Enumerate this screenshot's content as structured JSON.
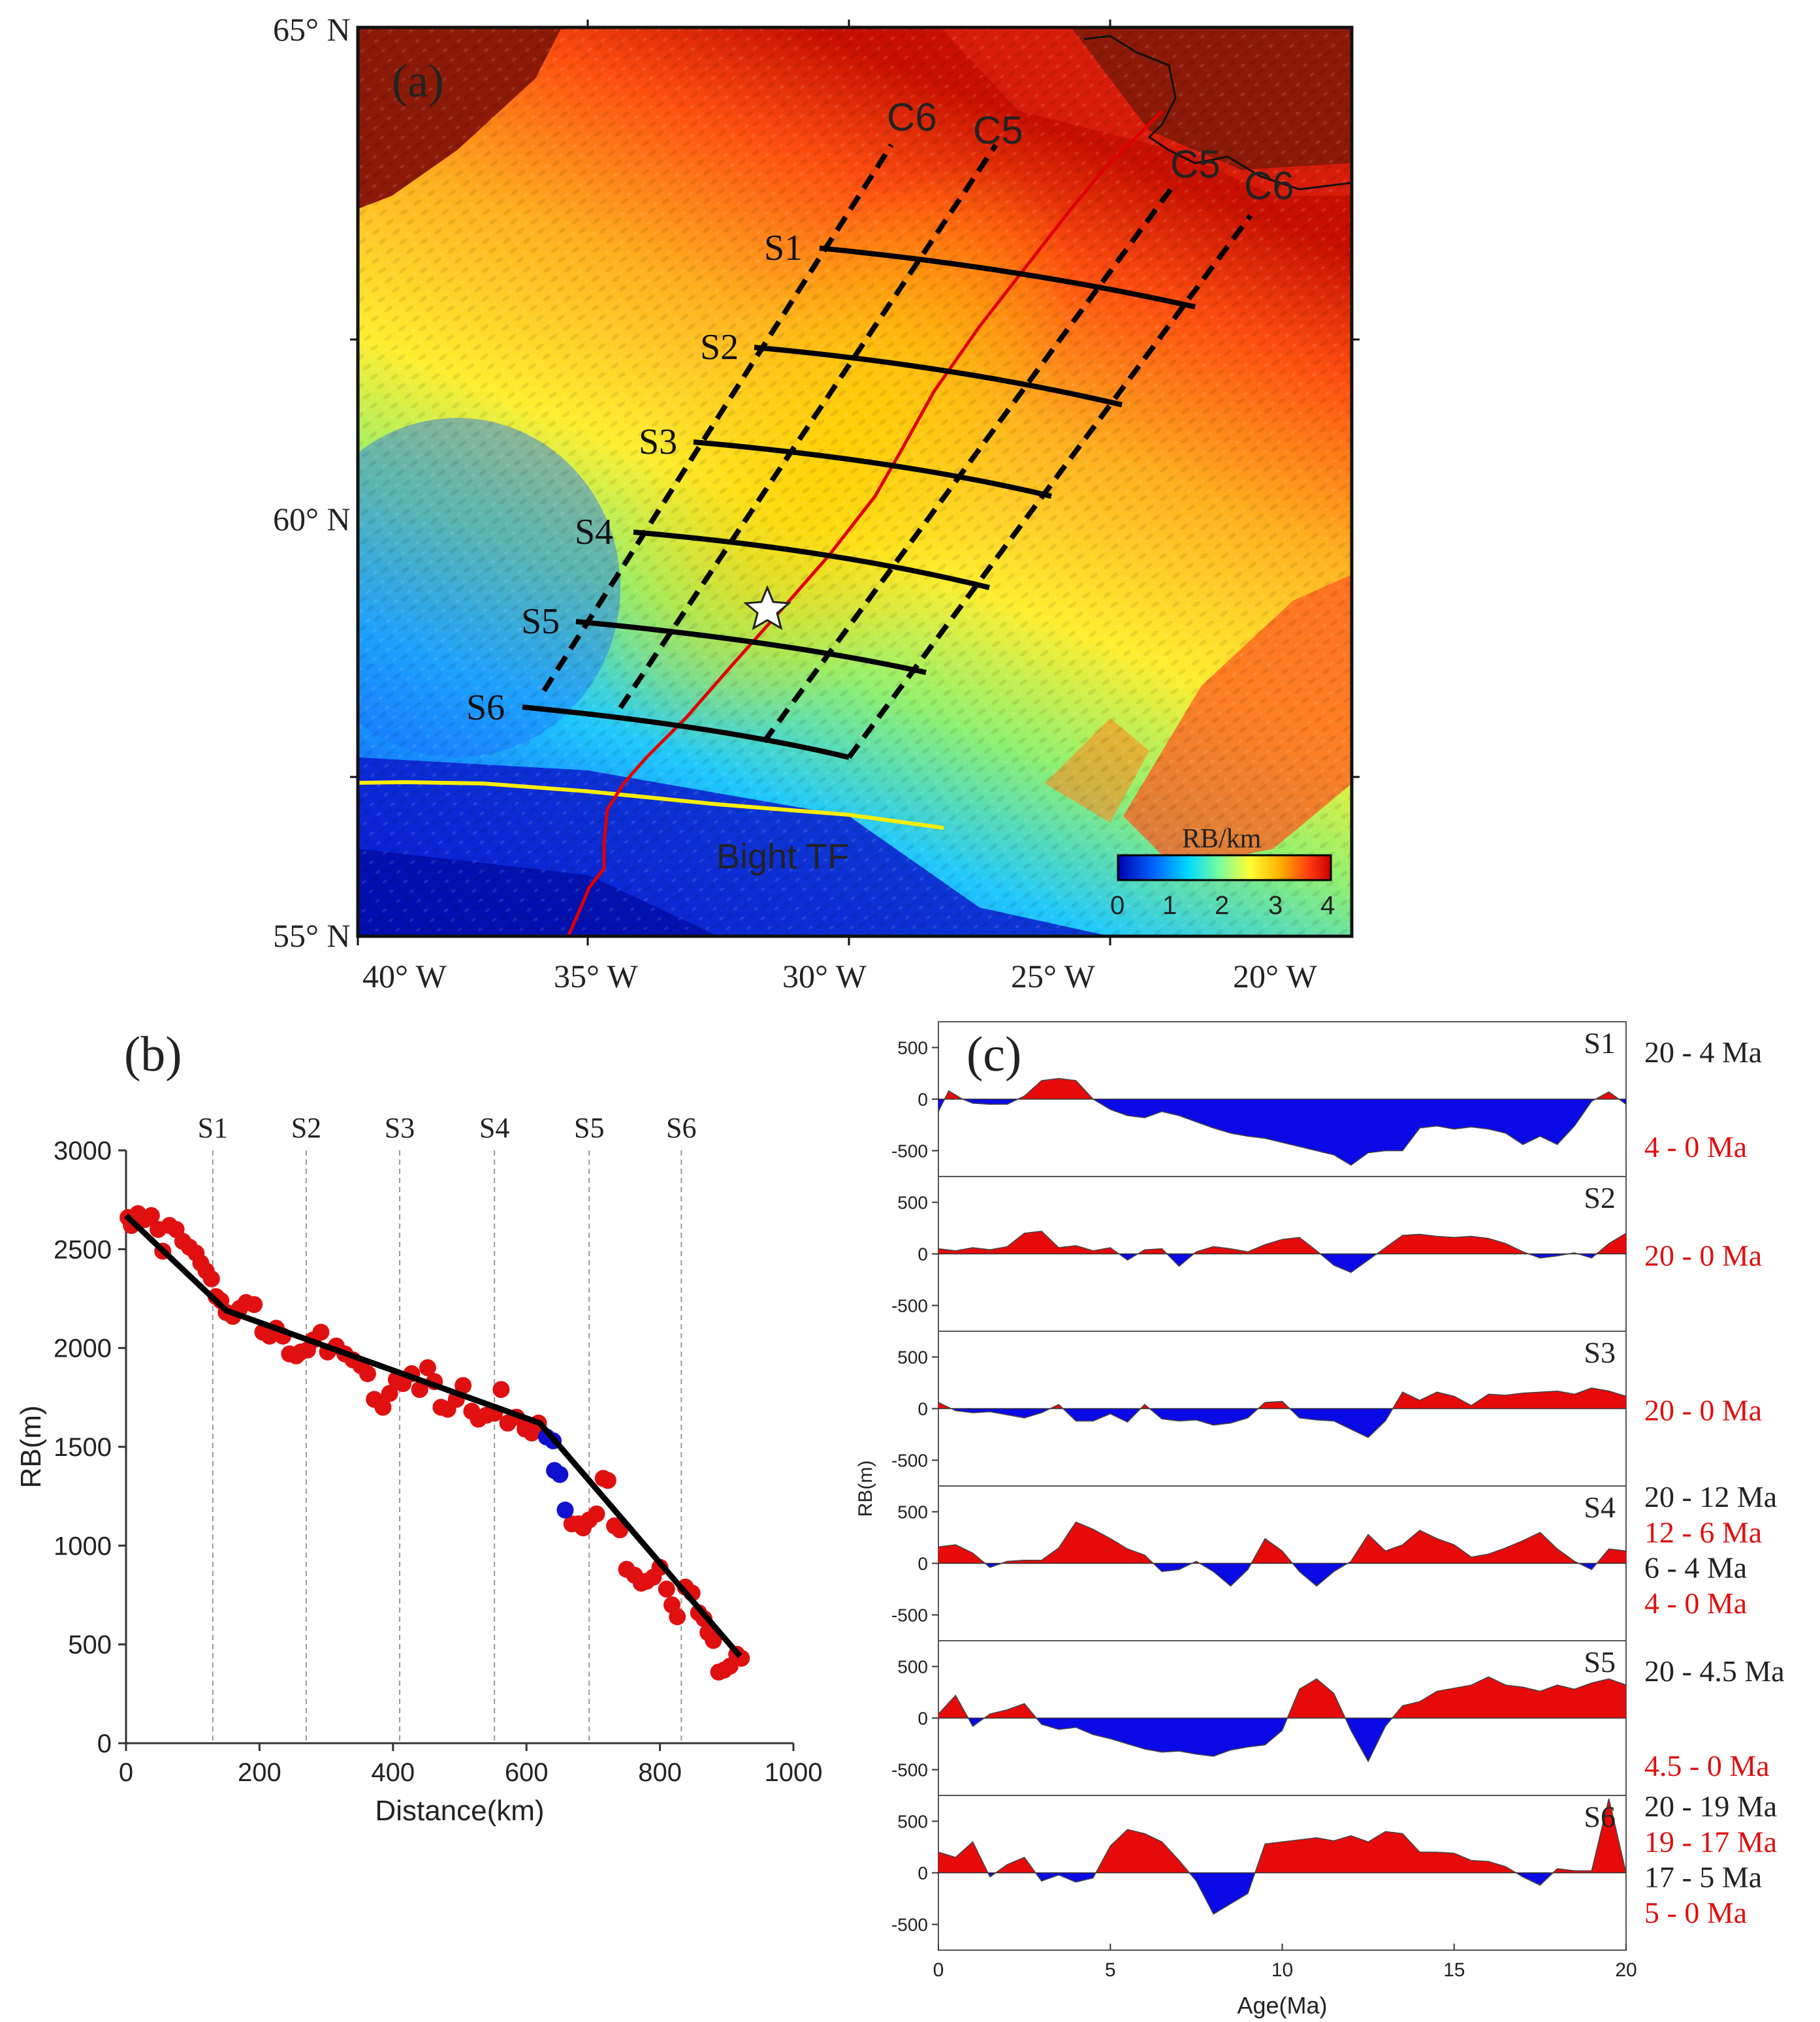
{
  "panel_a": {
    "label": "(a)",
    "lat_labels": [
      "65° N",
      "60° N",
      "55° N"
    ],
    "lon_labels": [
      "40° W",
      "35° W",
      "30° W",
      "25° W",
      "20° W"
    ],
    "isochron_labels": {
      "c6_west": "C6",
      "c5_west": "C5",
      "c5_east": "C5",
      "c6_east": "C6"
    },
    "profile_labels": [
      "S1",
      "S2",
      "S3",
      "S4",
      "S5",
      "S6"
    ],
    "tf_label": "Bight TF",
    "colorbar": {
      "title": "RB/km",
      "ticks": [
        "0",
        "1",
        "2",
        "3",
        "4"
      ],
      "colors": [
        "#0000b0",
        "#0066ff",
        "#00d8ff",
        "#7cff9c",
        "#ffff33",
        "#ffb000",
        "#ff3a10",
        "#c80000"
      ]
    }
  },
  "chart_data": [
    {
      "panel": "(b)",
      "type": "scatter",
      "xlabel": "Distance(km)",
      "ylabel": "RB(m)",
      "xlim": [
        0,
        1000
      ],
      "ylim": [
        0,
        3000
      ],
      "xticks": [
        "0",
        "200",
        "400",
        "600",
        "800",
        "1000"
      ],
      "yticks": [
        "0",
        "500",
        "1000",
        "1500",
        "2000",
        "2500",
        "3000"
      ],
      "profile_lines": [
        {
          "name": "S1",
          "x": 130
        },
        {
          "name": "S2",
          "x": 270
        },
        {
          "name": "S3",
          "x": 410
        },
        {
          "name": "S4",
          "x": 552
        },
        {
          "name": "S5",
          "x": 694
        },
        {
          "name": "S6",
          "x": 832
        }
      ],
      "series": [
        {
          "name": "red",
          "color": "#e01010",
          "points": [
            [
              3,
              2660
            ],
            [
              8,
              2620
            ],
            [
              18,
              2680
            ],
            [
              28,
              2650
            ],
            [
              38,
              2670
            ],
            [
              48,
              2600
            ],
            [
              55,
              2490
            ],
            [
              65,
              2620
            ],
            [
              75,
              2600
            ],
            [
              85,
              2540
            ],
            [
              95,
              2510
            ],
            [
              105,
              2480
            ],
            [
              112,
              2430
            ],
            [
              120,
              2390
            ],
            [
              128,
              2350
            ],
            [
              135,
              2260
            ],
            [
              142,
              2240
            ],
            [
              150,
              2180
            ],
            [
              160,
              2160
            ],
            [
              170,
              2200
            ],
            [
              180,
              2230
            ],
            [
              192,
              2220
            ],
            [
              205,
              2080
            ],
            [
              215,
              2060
            ],
            [
              225,
              2100
            ],
            [
              235,
              2060
            ],
            [
              245,
              1970
            ],
            [
              255,
              1960
            ],
            [
              262,
              1980
            ],
            [
              272,
              1990
            ],
            [
              280,
              2040
            ],
            [
              292,
              2080
            ],
            [
              302,
              1980
            ],
            [
              315,
              2010
            ],
            [
              328,
              1970
            ],
            [
              340,
              1940
            ],
            [
              352,
              1910
            ],
            [
              362,
              1870
            ],
            [
              372,
              1740
            ],
            [
              385,
              1700
            ],
            [
              395,
              1770
            ],
            [
              405,
              1840
            ],
            [
              415,
              1820
            ],
            [
              428,
              1870
            ],
            [
              440,
              1790
            ],
            [
              452,
              1900
            ],
            [
              462,
              1830
            ],
            [
              472,
              1700
            ],
            [
              482,
              1690
            ],
            [
              495,
              1740
            ],
            [
              505,
              1810
            ],
            [
              518,
              1680
            ],
            [
              528,
              1640
            ],
            [
              540,
              1660
            ],
            [
              552,
              1670
            ],
            [
              562,
              1790
            ],
            [
              572,
              1620
            ],
            [
              585,
              1650
            ],
            [
              598,
              1590
            ],
            [
              608,
              1570
            ],
            [
              618,
              1620
            ],
            [
              668,
              1110
            ],
            [
              678,
              1110
            ],
            [
              685,
              1090
            ],
            [
              694,
              1130
            ],
            [
              705,
              1160
            ],
            [
              715,
              1340
            ],
            [
              722,
              1330
            ],
            [
              732,
              1100
            ],
            [
              740,
              1080
            ],
            [
              750,
              880
            ],
            [
              762,
              850
            ],
            [
              772,
              810
            ],
            [
              780,
              820
            ],
            [
              790,
              840
            ],
            [
              800,
              890
            ],
            [
              810,
              780
            ],
            [
              818,
              700
            ],
            [
              826,
              640
            ],
            [
              838,
              790
            ],
            [
              848,
              760
            ],
            [
              858,
              660
            ],
            [
              866,
              630
            ],
            [
              872,
              560
            ],
            [
              880,
              520
            ],
            [
              888,
              360
            ],
            [
              896,
              370
            ],
            [
              905,
              390
            ],
            [
              915,
              450
            ],
            [
              922,
              430
            ]
          ]
        },
        {
          "name": "blue",
          "color": "#1010d0",
          "points": [
            [
              630,
              1550
            ],
            [
              640,
              1530
            ],
            [
              642,
              1380
            ],
            [
              650,
              1360
            ],
            [
              658,
              1180
            ]
          ]
        }
      ],
      "fit_line": {
        "color": "#000000",
        "x": [
          0,
          150,
          620,
          920
        ],
        "y": [
          2670,
          2190,
          1620,
          440
        ]
      }
    },
    {
      "panel": "(c)",
      "type": "area",
      "xlabel": "Age(Ma)",
      "ylabel": "RB(m)",
      "xlim": [
        0,
        20
      ],
      "ylim": [
        -750,
        750
      ],
      "xticks": [
        "0",
        "5",
        "10",
        "15",
        "20"
      ],
      "yticks": [
        "500",
        "0",
        "-500"
      ],
      "positive_color": "#e60a0a",
      "negative_color": "#0a0ae6",
      "series": [
        {
          "name": "S1",
          "annotations": [
            {
              "text": "20 - 4 Ma",
              "color": "#222222"
            },
            {
              "text": "4 - 0 Ma",
              "color": "#e01010"
            }
          ],
          "x": [
            0,
            0.3,
            0.7,
            1,
            1.5,
            2,
            2.5,
            3,
            3.5,
            4,
            4.5,
            5,
            5.5,
            6,
            6.5,
            7,
            7.5,
            8,
            8.5,
            9,
            9.5,
            10,
            10.5,
            11,
            11.5,
            12,
            12.5,
            13,
            13.5,
            14,
            14.5,
            15,
            15.5,
            16,
            16.5,
            17,
            17.5,
            18,
            18.5,
            19,
            19.5,
            20
          ],
          "values": [
            -120,
            80,
            0,
            -40,
            -50,
            -50,
            30,
            180,
            200,
            180,
            0,
            -100,
            -160,
            -180,
            -120,
            -160,
            -220,
            -280,
            -330,
            -360,
            -380,
            -420,
            -460,
            -500,
            -540,
            -640,
            -520,
            -500,
            -500,
            -280,
            -260,
            -290,
            -270,
            -290,
            -330,
            -440,
            -360,
            -440,
            -260,
            -20,
            70,
            -50
          ]
        },
        {
          "name": "S2",
          "annotations": [
            {
              "text": "20 - 0 Ma",
              "color": "#e01010"
            }
          ],
          "x": [
            0,
            0.5,
            1,
            1.5,
            2,
            2.5,
            3,
            3.5,
            4,
            4.5,
            5,
            5.5,
            6,
            6.5,
            7,
            7.5,
            8,
            8.5,
            9,
            9.5,
            10,
            10.5,
            11,
            11.5,
            12,
            12.5,
            13,
            13.5,
            14,
            14.5,
            15,
            15.5,
            16,
            16.5,
            17,
            17.5,
            18,
            18.5,
            19,
            19.5,
            20
          ],
          "values": [
            50,
            30,
            60,
            40,
            70,
            200,
            220,
            60,
            80,
            30,
            60,
            -60,
            40,
            50,
            -120,
            20,
            70,
            50,
            20,
            90,
            140,
            160,
            30,
            -110,
            -180,
            -60,
            60,
            180,
            190,
            170,
            160,
            170,
            150,
            100,
            20,
            -40,
            -20,
            10,
            -40,
            100,
            200
          ]
        },
        {
          "name": "S3",
          "annotations": [
            {
              "text": "20 - 0 Ma",
              "color": "#e01010"
            }
          ],
          "x": [
            0,
            0.5,
            1,
            1.5,
            2,
            2.5,
            3,
            3.5,
            4,
            4.5,
            5,
            5.5,
            6,
            6.5,
            7,
            7.5,
            8,
            8.5,
            9,
            9.5,
            10,
            10.5,
            11,
            11.5,
            12,
            12.5,
            13,
            13.5,
            14,
            14.5,
            15,
            15.5,
            16,
            16.5,
            17,
            17.5,
            18,
            18.5,
            19,
            19.5,
            20
          ],
          "values": [
            60,
            -20,
            -40,
            -30,
            -60,
            -90,
            -40,
            40,
            -120,
            -120,
            -50,
            -130,
            40,
            -100,
            -120,
            -110,
            -160,
            -140,
            -90,
            60,
            70,
            -90,
            -110,
            -120,
            -200,
            -280,
            -120,
            160,
            80,
            160,
            120,
            30,
            140,
            130,
            150,
            160,
            170,
            140,
            200,
            170,
            120
          ]
        },
        {
          "name": "S4",
          "annotations": [
            {
              "text": "20 - 12 Ma",
              "color": "#222222"
            },
            {
              "text": "12 - 6 Ma",
              "color": "#e01010"
            },
            {
              "text": "6 - 4 Ma",
              "color": "#222222"
            },
            {
              "text": "4 - 0 Ma",
              "color": "#e01010"
            }
          ],
          "x": [
            0,
            0.5,
            1,
            1.5,
            2,
            2.5,
            3,
            3.5,
            4,
            4.5,
            5,
            5.5,
            6,
            6.5,
            7,
            7.5,
            8,
            8.5,
            9,
            9.5,
            10,
            10.5,
            11,
            11.5,
            12,
            12.5,
            13,
            13.5,
            14,
            14.5,
            15,
            15.5,
            16,
            16.5,
            17,
            17.5,
            18,
            18.5,
            19,
            19.5,
            20
          ],
          "values": [
            160,
            180,
            100,
            -40,
            20,
            30,
            30,
            150,
            400,
            330,
            240,
            140,
            80,
            -80,
            -60,
            20,
            -80,
            -220,
            -60,
            240,
            120,
            -80,
            -220,
            -80,
            20,
            280,
            120,
            180,
            320,
            240,
            180,
            60,
            90,
            150,
            220,
            300,
            140,
            20,
            -60,
            140,
            120
          ]
        },
        {
          "name": "S5",
          "annotations": [
            {
              "text": "20 - 4.5 Ma",
              "color": "#222222"
            },
            {
              "text": "4.5 - 0 Ma",
              "color": "#e01010"
            }
          ],
          "x": [
            0,
            0.5,
            1,
            1.5,
            2,
            2.5,
            3,
            3.5,
            4,
            4.5,
            5,
            5.5,
            6,
            6.5,
            7,
            7.5,
            8,
            8.5,
            9,
            9.5,
            10,
            10.5,
            11,
            11.5,
            12,
            12.5,
            13,
            13.5,
            14,
            14.5,
            15,
            15.5,
            16,
            16.5,
            17,
            17.5,
            18,
            18.5,
            19,
            19.5,
            20
          ],
          "values": [
            40,
            220,
            -80,
            40,
            80,
            140,
            -60,
            -110,
            -90,
            -160,
            -200,
            -250,
            -300,
            -330,
            -320,
            -350,
            -370,
            -310,
            -280,
            -260,
            -120,
            280,
            380,
            240,
            -120,
            -420,
            -80,
            120,
            160,
            260,
            290,
            320,
            400,
            320,
            300,
            260,
            320,
            280,
            340,
            380,
            320
          ]
        },
        {
          "name": "S6",
          "annotations": [
            {
              "text": "20 - 19 Ma",
              "color": "#222222"
            },
            {
              "text": "19 - 17 Ma",
              "color": "#e01010"
            },
            {
              "text": "17 - 5 Ma",
              "color": "#222222"
            },
            {
              "text": "5 - 0 Ma",
              "color": "#e01010"
            }
          ],
          "x": [
            0,
            0.5,
            1,
            1.5,
            2,
            2.5,
            3,
            3.5,
            4,
            4.5,
            5,
            5.5,
            6,
            6.5,
            7,
            7.5,
            8,
            8.5,
            9,
            9.5,
            10,
            10.5,
            11,
            11.5,
            12,
            12.5,
            13,
            13.5,
            14,
            14.5,
            15,
            15.5,
            16,
            16.5,
            17,
            17.5,
            18,
            18.5,
            19,
            19.5,
            20
          ],
          "values": [
            200,
            150,
            300,
            -40,
            80,
            150,
            -80,
            -20,
            -90,
            -50,
            260,
            420,
            380,
            300,
            120,
            -80,
            -400,
            -300,
            -200,
            280,
            300,
            320,
            340,
            310,
            360,
            300,
            400,
            380,
            200,
            200,
            190,
            120,
            110,
            60,
            -40,
            -120,
            40,
            20,
            20,
            720,
            0
          ]
        }
      ]
    }
  ]
}
